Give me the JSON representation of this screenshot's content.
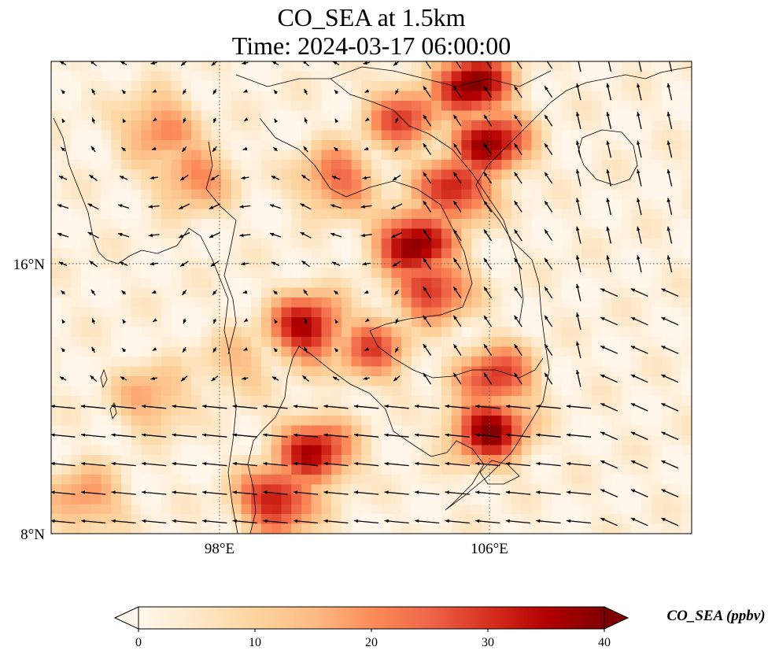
{
  "title": {
    "line1": "CO_SEA at 1.5km",
    "line2": "Time: 2024-03-17 06:00:00"
  },
  "map": {
    "lon_range": [
      93,
      112
    ],
    "lat_range": [
      8,
      22
    ],
    "lon_ticks": [
      {
        "value": 98,
        "label": "98°E"
      },
      {
        "value": 106,
        "label": "106°E"
      }
    ],
    "lat_ticks": [
      {
        "value": 16,
        "label": "16°N"
      },
      {
        "value": 8,
        "label": "8°N"
      }
    ],
    "gridlines": true
  },
  "colorbar": {
    "label": "CO_SEA (ppbv)",
    "min": 0,
    "max": 40,
    "ticks": [
      {
        "value": 0,
        "label": "0"
      },
      {
        "value": 10,
        "label": "10"
      },
      {
        "value": 20,
        "label": "20"
      },
      {
        "value": 30,
        "label": "30"
      },
      {
        "value": 40,
        "label": "40"
      }
    ],
    "extend": "both",
    "colormap": "OrRd",
    "stops": [
      "#fff7ec",
      "#fee8c8",
      "#fdd49e",
      "#fdbb84",
      "#fc8d59",
      "#ef6548",
      "#d7301f",
      "#b30000",
      "#7f0000"
    ]
  },
  "chart_data": {
    "type": "heatmap",
    "variable": "CO_SEA",
    "units": "ppbv",
    "altitude": "1.5km",
    "time": "2024-03-17 06:00:00",
    "x_range": [
      93,
      112
    ],
    "y_range": [
      8,
      22
    ],
    "value_range": [
      0,
      40
    ],
    "plumes": [
      {
        "lon": 105.5,
        "lat": 21.3,
        "value": 40
      },
      {
        "lon": 106.0,
        "lat": 19.6,
        "value": 38
      },
      {
        "lon": 105.0,
        "lat": 18.2,
        "value": 34
      },
      {
        "lon": 103.8,
        "lat": 16.6,
        "value": 40
      },
      {
        "lon": 104.3,
        "lat": 15.3,
        "value": 32
      },
      {
        "lon": 103.5,
        "lat": 20.3,
        "value": 28
      },
      {
        "lon": 101.5,
        "lat": 18.5,
        "value": 25
      },
      {
        "lon": 102.5,
        "lat": 13.5,
        "value": 26
      },
      {
        "lon": 100.6,
        "lat": 14.1,
        "value": 36
      },
      {
        "lon": 106.2,
        "lat": 12.6,
        "value": 30
      },
      {
        "lon": 106.0,
        "lat": 11.1,
        "value": 38
      },
      {
        "lon": 100.8,
        "lat": 10.4,
        "value": 35
      },
      {
        "lon": 99.7,
        "lat": 9.0,
        "value": 35
      },
      {
        "lon": 96.2,
        "lat": 20.0,
        "value": 22
      },
      {
        "lon": 97.2,
        "lat": 18.6,
        "value": 22
      },
      {
        "lon": 96.0,
        "lat": 12.0,
        "value": 18
      },
      {
        "lon": 94.0,
        "lat": 9.0,
        "value": 20
      },
      {
        "lon": 98.5,
        "lat": 13.0,
        "value": 14
      }
    ],
    "wind_field": "low-level wind vectors; easterly to northeasterly over the South China Sea and Gulf of Thailand, southerly near Hainan"
  }
}
